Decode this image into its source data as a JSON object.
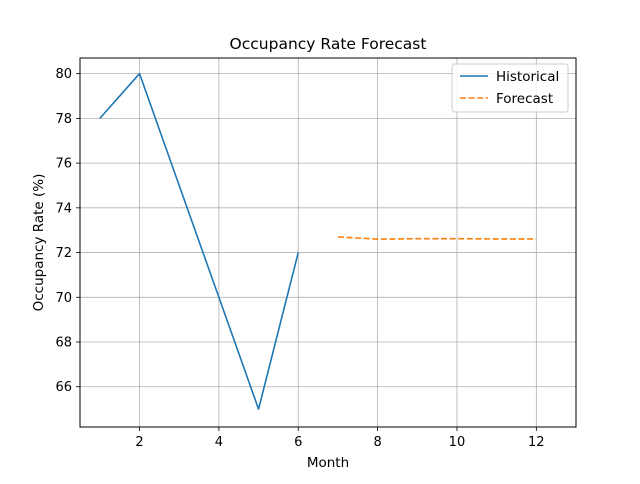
{
  "chart_data": {
    "type": "line",
    "title": "Occupancy Rate Forecast",
    "xlabel": "Month",
    "ylabel": "Occupancy Rate (%)",
    "xlim": [
      0.5,
      13.0
    ],
    "ylim": [
      64.2,
      80.7
    ],
    "xticks": [
      2,
      4,
      6,
      8,
      10,
      12
    ],
    "yticks": [
      66,
      68,
      70,
      72,
      74,
      76,
      78,
      80
    ],
    "grid": true,
    "legend_position": "top-right",
    "series": [
      {
        "name": "Historical",
        "style": "solid",
        "color": "#1f77b4",
        "x": [
          1,
          2,
          3,
          4,
          5,
          6
        ],
        "values": [
          78,
          80,
          75,
          70,
          65,
          72
        ]
      },
      {
        "name": "Forecast",
        "style": "dashed",
        "color": "#ff7f0e",
        "x": [
          7,
          8,
          9,
          10,
          11,
          12
        ],
        "values": [
          72.7,
          72.6,
          72.62,
          72.62,
          72.61,
          72.61
        ]
      }
    ]
  }
}
